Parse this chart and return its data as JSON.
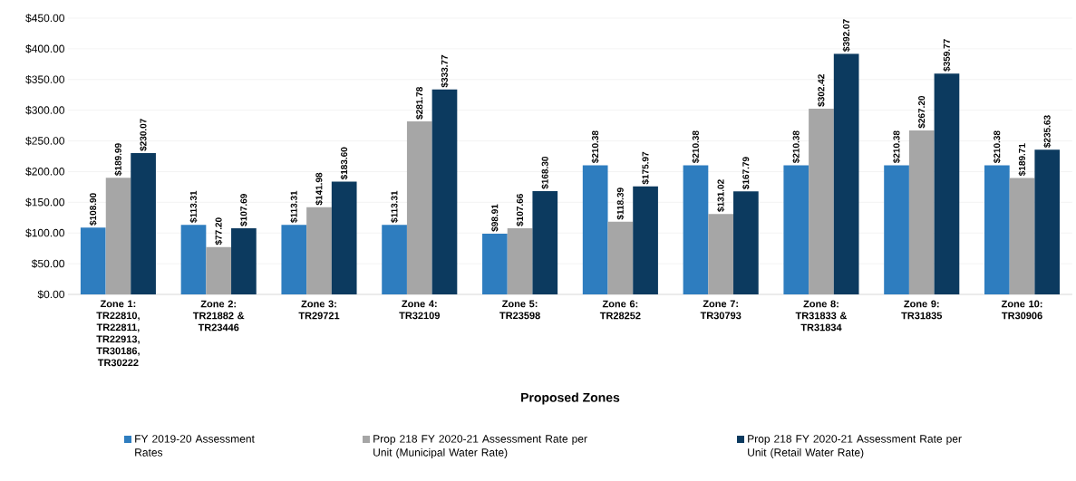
{
  "chart_data": {
    "type": "bar",
    "xlabel": "Proposed Zones",
    "categories": [
      "Zone 1: TR22810, TR22811, TR22913, TR30186, TR30222",
      "Zone 2: TR21882 & TR23446",
      "Zone 3: TR29721",
      "Zone 4: TR32109",
      "Zone 5: TR23598",
      "Zone 6: TR28252",
      "Zone 7: TR30793",
      "Zone 8: TR31833 & TR31834",
      "Zone 9: TR31835",
      "Zone 10: TR30906"
    ],
    "series": [
      {
        "name": "FY 2019-20 Assessment Rates",
        "color": "#2e7dbf",
        "values": [
          108.9,
          113.31,
          113.31,
          113.31,
          98.91,
          210.38,
          210.38,
          210.38,
          210.38,
          210.38
        ],
        "value_labels": [
          "$108.90",
          "$113.31",
          "$113.31",
          "$113.31",
          "$98.91",
          "$210.38",
          "$210.38",
          "$210.38",
          "$210.38",
          "$210.38"
        ]
      },
      {
        "name": "Prop 218 FY 2020-21 Assessment Rate per Unit (Municipal Water Rate)",
        "color": "#a6a6a6",
        "values": [
          189.99,
          77.2,
          141.98,
          281.78,
          107.66,
          118.39,
          131.02,
          302.42,
          267.2,
          189.71
        ],
        "value_labels": [
          "$189.99",
          "$77.20",
          "$141.98",
          "$281.78",
          "$107.66",
          "$118.39",
          "$131.02",
          "$302.42",
          "$267.20",
          "$189.71"
        ]
      },
      {
        "name": "Prop 218 FY 2020-21 Assessment Rate per Unit (Retail Water Rate)",
        "color": "#0c3a5f",
        "values": [
          230.07,
          107.69,
          183.6,
          333.77,
          168.3,
          175.97,
          167.79,
          392.07,
          359.77,
          235.63
        ],
        "value_labels": [
          "$230.07",
          "$107.69",
          "$183.60",
          "$333.77",
          "$168.30",
          "$175.97",
          "$167.79",
          "$392.07",
          "$359.77",
          "$235.63"
        ]
      }
    ],
    "ylim": [
      0,
      450
    ],
    "yticks": [
      {
        "value": 0,
        "label": "$0.00"
      },
      {
        "value": 50,
        "label": "$50.00"
      },
      {
        "value": 100,
        "label": "$100.00"
      },
      {
        "value": 150,
        "label": "$150.00"
      },
      {
        "value": 200,
        "label": "$200.00"
      },
      {
        "value": 250,
        "label": "$250.00"
      },
      {
        "value": 300,
        "label": "$300.00"
      },
      {
        "value": 350,
        "label": "$350.00"
      },
      {
        "value": 400,
        "label": "$400.00"
      },
      {
        "value": 450,
        "label": "$450.00"
      }
    ],
    "grid": "y",
    "legend": "bottom"
  }
}
